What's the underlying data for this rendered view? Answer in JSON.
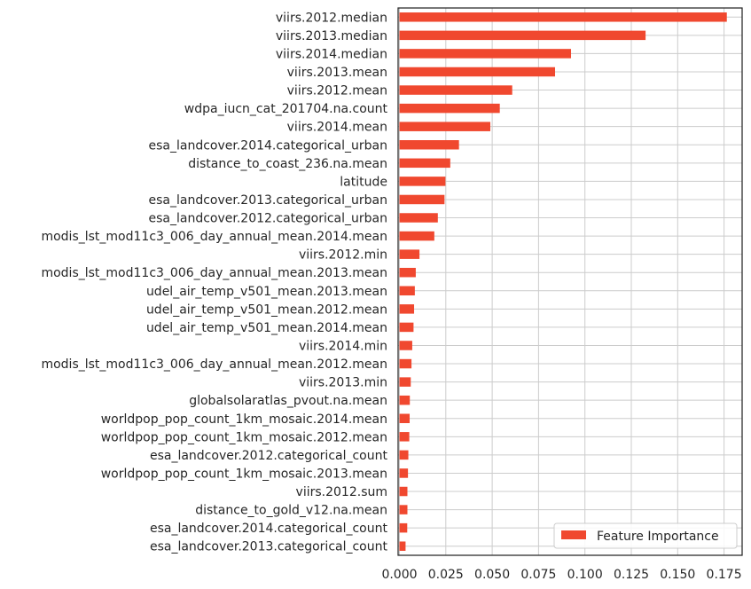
{
  "chart_data": {
    "type": "bar",
    "orientation": "horizontal",
    "categories": [
      "viirs.2012.median",
      "viirs.2013.median",
      "viirs.2014.median",
      "viirs.2013.mean",
      "viirs.2012.mean",
      "wdpa_iucn_cat_201704.na.count",
      "viirs.2014.mean",
      "esa_landcover.2014.categorical_urban",
      "distance_to_coast_236.na.mean",
      "latitude",
      "esa_landcover.2013.categorical_urban",
      "esa_landcover.2012.categorical_urban",
      "modis_lst_mod11c3_006_day_annual_mean.2014.mean",
      "viirs.2012.min",
      "modis_lst_mod11c3_006_day_annual_mean.2013.mean",
      "udel_air_temp_v501_mean.2013.mean",
      "udel_air_temp_v501_mean.2012.mean",
      "udel_air_temp_v501_mean.2014.mean",
      "viirs.2014.min",
      "modis_lst_mod11c3_006_day_annual_mean.2012.mean",
      "viirs.2013.min",
      "globalsolaratlas_pvout.na.mean",
      "worldpop_pop_count_1km_mosaic.2014.mean",
      "worldpop_pop_count_1km_mosaic.2012.mean",
      "esa_landcover.2012.categorical_count",
      "worldpop_pop_count_1km_mosaic.2013.mean",
      "viirs.2012.sum",
      "distance_to_gold_v12.na.mean",
      "esa_landcover.2014.categorical_count",
      "esa_landcover.2013.categorical_count"
    ],
    "series": [
      {
        "name": "Feature Importance",
        "color": "#f0482f",
        "values": [
          0.1765,
          0.1327,
          0.0925,
          0.0839,
          0.0608,
          0.0541,
          0.049,
          0.0321,
          0.0274,
          0.0248,
          0.0243,
          0.0207,
          0.0188,
          0.0108,
          0.0088,
          0.0083,
          0.0079,
          0.0076,
          0.0069,
          0.0065,
          0.0061,
          0.0056,
          0.0055,
          0.0053,
          0.0048,
          0.0046,
          0.0043,
          0.0043,
          0.0042,
          0.0033
        ]
      }
    ],
    "xticks": [
      "0.000",
      "0.025",
      "0.050",
      "0.075",
      "0.100",
      "0.125",
      "0.150",
      "0.175"
    ],
    "xlim": [
      0,
      0.185
    ],
    "grid": true,
    "legend_position": "bottom-right",
    "title": "",
    "xlabel": "",
    "ylabel": ""
  }
}
